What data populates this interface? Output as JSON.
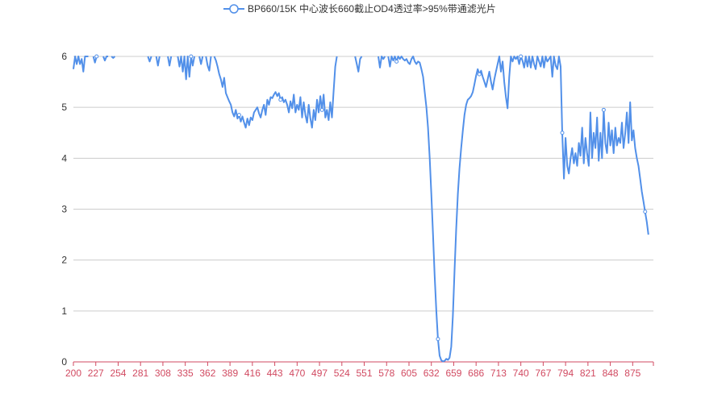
{
  "legend": {
    "label": "BP660/15K 中心波长660截止OD4透过率>95%带通滤光片"
  },
  "colors": {
    "series": "#5290e9",
    "axis": "#d14a61",
    "grid": "#cccccc",
    "text": "#333333"
  },
  "chart_data": {
    "type": "line",
    "title": "",
    "xlabel": "",
    "ylabel": "",
    "xlim": [
      200,
      900
    ],
    "ylim": [
      0,
      6
    ],
    "x_ticks": [
      "200",
      "227",
      "254",
      "281",
      "308",
      "335",
      "362",
      "389",
      "416",
      "443",
      "470",
      "497",
      "524",
      "551",
      "578",
      "605",
      "632",
      "659",
      "686",
      "713",
      "740",
      "767",
      "794",
      "821",
      "848",
      "875"
    ],
    "y_ticks": [
      "0",
      "1",
      "2",
      "3",
      "4",
      "5",
      "6"
    ],
    "grid": "horizontal",
    "legend_position": "top-center",
    "series": [
      {
        "name": "BP660/15K 中心波长660截止OD4透过率>95%带通滤光片",
        "points": [
          [
            200,
            5.75
          ],
          [
            202,
            6
          ],
          [
            204,
            5.85
          ],
          [
            206,
            6
          ],
          [
            208,
            5.85
          ],
          [
            210,
            5.95
          ],
          [
            212,
            5.7
          ],
          [
            214,
            6
          ],
          [
            216,
            6
          ],
          [
            218,
            6
          ],
          [
            224,
            6
          ],
          [
            226,
            5.88
          ],
          [
            228,
            6
          ],
          [
            236,
            6
          ],
          [
            238,
            5.92
          ],
          [
            240,
            6
          ],
          [
            242,
            6
          ],
          [
            246,
            6
          ],
          [
            248,
            5.97
          ],
          [
            250,
            6
          ],
          [
            290,
            6
          ],
          [
            292,
            5.9
          ],
          [
            294,
            6
          ],
          [
            300,
            6
          ],
          [
            302,
            5.82
          ],
          [
            304,
            6
          ],
          [
            314,
            6
          ],
          [
            316,
            5.82
          ],
          [
            318,
            6
          ],
          [
            326,
            6
          ],
          [
            328,
            5.8
          ],
          [
            330,
            6
          ],
          [
            332,
            5.7
          ],
          [
            334,
            6
          ],
          [
            336,
            5.55
          ],
          [
            338,
            6
          ],
          [
            340,
            5.6
          ],
          [
            342,
            6
          ],
          [
            344,
            5.82
          ],
          [
            346,
            6
          ],
          [
            352,
            6
          ],
          [
            354,
            5.85
          ],
          [
            356,
            6
          ],
          [
            360,
            6
          ],
          [
            362,
            5.82
          ],
          [
            364,
            5.72
          ],
          [
            366,
            6
          ],
          [
            370,
            6
          ],
          [
            372,
            5.92
          ],
          [
            374,
            5.8
          ],
          [
            376,
            5.65
          ],
          [
            378,
            5.55
          ],
          [
            380,
            5.4
          ],
          [
            382,
            5.58
          ],
          [
            384,
            5.28
          ],
          [
            386,
            5.2
          ],
          [
            388,
            5.12
          ],
          [
            390,
            5.05
          ],
          [
            392,
            4.9
          ],
          [
            394,
            4.82
          ],
          [
            396,
            4.95
          ],
          [
            398,
            4.78
          ],
          [
            400,
            4.85
          ],
          [
            402,
            4.72
          ],
          [
            404,
            4.82
          ],
          [
            406,
            4.7
          ],
          [
            408,
            4.6
          ],
          [
            410,
            4.78
          ],
          [
            412,
            4.65
          ],
          [
            414,
            4.8
          ],
          [
            416,
            4.75
          ],
          [
            418,
            4.9
          ],
          [
            420,
            4.95
          ],
          [
            422,
            5
          ],
          [
            424,
            4.88
          ],
          [
            426,
            4.8
          ],
          [
            428,
            4.95
          ],
          [
            430,
            5.05
          ],
          [
            432,
            4.85
          ],
          [
            434,
            5.15
          ],
          [
            436,
            5.05
          ],
          [
            438,
            5.2
          ],
          [
            440,
            5.18
          ],
          [
            442,
            5.25
          ],
          [
            444,
            5.3
          ],
          [
            446,
            5.22
          ],
          [
            448,
            5.28
          ],
          [
            450,
            5.15
          ],
          [
            452,
            5.2
          ],
          [
            454,
            5.1
          ],
          [
            456,
            5.15
          ],
          [
            458,
            5.05
          ],
          [
            460,
            4.9
          ],
          [
            462,
            5.12
          ],
          [
            464,
            4.98
          ],
          [
            466,
            5.25
          ],
          [
            468,
            4.9
          ],
          [
            470,
            5.05
          ],
          [
            472,
            4.95
          ],
          [
            474,
            5.2
          ],
          [
            476,
            4.8
          ],
          [
            478,
            5.1
          ],
          [
            480,
            4.85
          ],
          [
            482,
            4.7
          ],
          [
            484,
            5.05
          ],
          [
            486,
            4.78
          ],
          [
            488,
            4.6
          ],
          [
            490,
            4.95
          ],
          [
            492,
            4.75
          ],
          [
            494,
            5.15
          ],
          [
            496,
            4.9
          ],
          [
            498,
            5.22
          ],
          [
            500,
            4.95
          ],
          [
            502,
            5.25
          ],
          [
            504,
            4.8
          ],
          [
            506,
            4.95
          ],
          [
            508,
            4.75
          ],
          [
            510,
            5.1
          ],
          [
            512,
            4.8
          ],
          [
            514,
            5.3
          ],
          [
            516,
            5.8
          ],
          [
            518,
            6
          ],
          [
            540,
            6
          ],
          [
            542,
            5.85
          ],
          [
            544,
            5.7
          ],
          [
            546,
            5.95
          ],
          [
            548,
            6
          ],
          [
            568,
            6
          ],
          [
            570,
            5.78
          ],
          [
            572,
            6
          ],
          [
            574,
            5.95
          ],
          [
            576,
            6
          ],
          [
            580,
            6
          ],
          [
            582,
            5.8
          ],
          [
            584,
            6
          ],
          [
            586,
            5.92
          ],
          [
            588,
            6
          ],
          [
            590,
            5.9
          ],
          [
            592,
            6
          ],
          [
            594,
            5.95
          ],
          [
            596,
            6
          ],
          [
            598,
            5.95
          ],
          [
            600,
            5.92
          ],
          [
            602,
            5.95
          ],
          [
            604,
            5.88
          ],
          [
            606,
            5.85
          ],
          [
            608,
            5.95
          ],
          [
            610,
            6
          ],
          [
            612,
            5.9
          ],
          [
            614,
            5.85
          ],
          [
            616,
            5.9
          ],
          [
            618,
            5.88
          ],
          [
            620,
            5.75
          ],
          [
            622,
            5.6
          ],
          [
            624,
            5.3
          ],
          [
            626,
            5.0
          ],
          [
            628,
            4.6
          ],
          [
            630,
            4.0
          ],
          [
            632,
            3.3
          ],
          [
            634,
            2.5
          ],
          [
            636,
            1.7
          ],
          [
            638,
            1.0
          ],
          [
            640,
            0.45
          ],
          [
            642,
            0.12
          ],
          [
            644,
            0.03
          ],
          [
            646,
            0.01
          ],
          [
            648,
            0.02
          ],
          [
            650,
            0.06
          ],
          [
            652,
            0.04
          ],
          [
            654,
            0.08
          ],
          [
            656,
            0.3
          ],
          [
            658,
            0.9
          ],
          [
            660,
            1.8
          ],
          [
            662,
            2.6
          ],
          [
            664,
            3.3
          ],
          [
            666,
            3.8
          ],
          [
            668,
            4.2
          ],
          [
            670,
            4.55
          ],
          [
            672,
            4.85
          ],
          [
            674,
            5.05
          ],
          [
            676,
            5.15
          ],
          [
            678,
            5.18
          ],
          [
            680,
            5.22
          ],
          [
            682,
            5.3
          ],
          [
            684,
            5.45
          ],
          [
            686,
            5.62
          ],
          [
            688,
            5.75
          ],
          [
            690,
            5.65
          ],
          [
            692,
            5.72
          ],
          [
            694,
            5.6
          ],
          [
            696,
            5.5
          ],
          [
            698,
            5.4
          ],
          [
            700,
            5.55
          ],
          [
            702,
            5.7
          ],
          [
            704,
            5.5
          ],
          [
            706,
            5.35
          ],
          [
            708,
            5.55
          ],
          [
            710,
            5.7
          ],
          [
            712,
            5.85
          ],
          [
            714,
            6
          ],
          [
            716,
            5.7
          ],
          [
            718,
            5.9
          ],
          [
            720,
            5.5
          ],
          [
            722,
            5.2
          ],
          [
            724,
            4.98
          ],
          [
            726,
            5.6
          ],
          [
            728,
            6
          ],
          [
            730,
            5.9
          ],
          [
            732,
            6
          ],
          [
            734,
            5.95
          ],
          [
            736,
            6
          ],
          [
            738,
            5.85
          ],
          [
            740,
            6
          ],
          [
            742,
            5.92
          ],
          [
            744,
            5.78
          ],
          [
            746,
            6
          ],
          [
            748,
            5.8
          ],
          [
            750,
            6
          ],
          [
            752,
            5.78
          ],
          [
            754,
            6
          ],
          [
            756,
            5.85
          ],
          [
            758,
            5.75
          ],
          [
            760,
            6
          ],
          [
            762,
            5.9
          ],
          [
            764,
            5.8
          ],
          [
            766,
            6
          ],
          [
            768,
            5.78
          ],
          [
            770,
            6
          ],
          [
            772,
            5.9
          ],
          [
            774,
            5.95
          ],
          [
            776,
            6
          ],
          [
            778,
            5.6
          ],
          [
            780,
            6
          ],
          [
            782,
            5.82
          ],
          [
            784,
            5.75
          ],
          [
            786,
            6
          ],
          [
            788,
            5.8
          ],
          [
            790,
            4.5
          ],
          [
            792,
            3.6
          ],
          [
            794,
            4.4
          ],
          [
            796,
            3.85
          ],
          [
            798,
            3.7
          ],
          [
            800,
            4.0
          ],
          [
            802,
            4.2
          ],
          [
            804,
            3.9
          ],
          [
            806,
            4.1
          ],
          [
            808,
            3.85
          ],
          [
            810,
            4.3
          ],
          [
            812,
            4.05
          ],
          [
            814,
            4.6
          ],
          [
            816,
            3.9
          ],
          [
            818,
            4.4
          ],
          [
            820,
            4.1
          ],
          [
            822,
            3.85
          ],
          [
            824,
            4.9
          ],
          [
            826,
            4.0
          ],
          [
            828,
            4.5
          ],
          [
            830,
            4.2
          ],
          [
            832,
            4.8
          ],
          [
            834,
            3.95
          ],
          [
            836,
            4.5
          ],
          [
            838,
            4.0
          ],
          [
            840,
            4.95
          ],
          [
            842,
            4.3
          ],
          [
            844,
            4.1
          ],
          [
            846,
            4.7
          ],
          [
            848,
            4.25
          ],
          [
            850,
            4.55
          ],
          [
            852,
            4.1
          ],
          [
            854,
            4.6
          ],
          [
            856,
            4.25
          ],
          [
            858,
            4.4
          ],
          [
            860,
            4.3
          ],
          [
            862,
            4.7
          ],
          [
            864,
            4.2
          ],
          [
            866,
            4.5
          ],
          [
            868,
            4.9
          ],
          [
            870,
            4.3
          ],
          [
            872,
            5.1
          ],
          [
            874,
            4.35
          ],
          [
            876,
            4.55
          ],
          [
            878,
            4.2
          ],
          [
            880,
            4.0
          ],
          [
            882,
            3.85
          ],
          [
            884,
            3.6
          ],
          [
            886,
            3.35
          ],
          [
            888,
            3.15
          ],
          [
            890,
            2.95
          ],
          [
            892,
            2.75
          ],
          [
            894,
            2.5
          ]
        ]
      }
    ]
  }
}
